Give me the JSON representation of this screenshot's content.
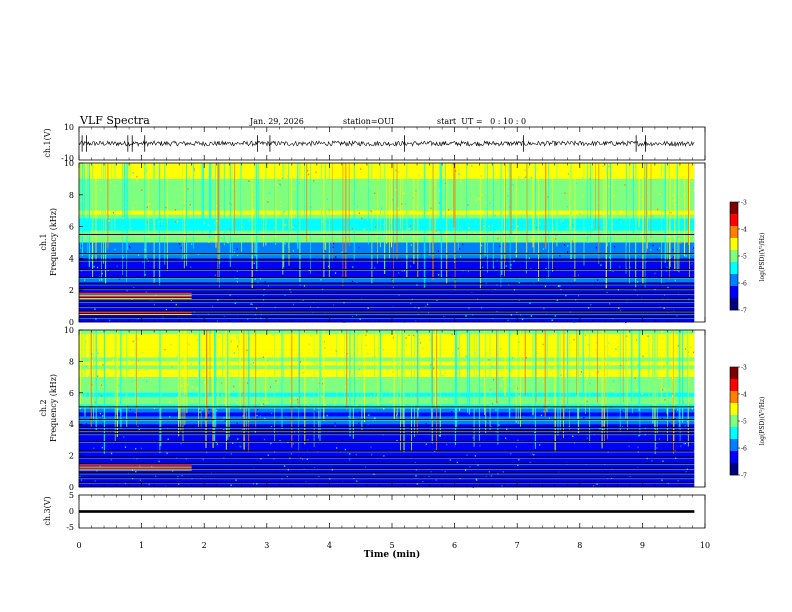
{
  "header": {
    "title": "VLF Spectra",
    "date": "Jan. 29, 2026",
    "station": "station=OUI",
    "start": "start  UT =   0 : 10 : 0"
  },
  "chart_data": [
    {
      "type": "line",
      "name": "waveform-ch1",
      "ylabel": "ch.1(V)",
      "ylim": [
        -10,
        10
      ],
      "yticks": [
        "10",
        "-10"
      ],
      "trace_level": 0,
      "trace_amplitude": 1.5,
      "spikes": [
        0.05,
        0.12,
        0.78,
        0.85,
        1.05,
        2.85,
        3.05,
        5.2,
        7.1,
        8.9,
        9.05
      ]
    },
    {
      "type": "heatmap",
      "name": "spectrogram-ch1",
      "ylabel_line1": "ch.1",
      "ylabel_line2": "Frequency (kHz)",
      "ylim": [
        0,
        10
      ],
      "yticks": [
        "0",
        "2",
        "4",
        "6",
        "8",
        "10"
      ],
      "colorbar_label": "log(PSD)(V²/Hz)",
      "colorbar_range": [
        -7,
        -3
      ],
      "colorbar_ticks": [
        "-3",
        "-4",
        "-5",
        "-6",
        "-7"
      ],
      "tones_khz": [
        0.3,
        0.55,
        0.7,
        1.0,
        1.3,
        1.5,
        1.8,
        2.1,
        2.4,
        2.8,
        3.3,
        3.9,
        4.3,
        5.5
      ],
      "red_tones_khz": [
        0.6,
        1.6,
        1.8
      ]
    },
    {
      "type": "heatmap",
      "name": "spectrogram-ch2",
      "ylabel_line1": "ch.2",
      "ylabel_line2": "Frequency (kHz)",
      "ylim": [
        0,
        10
      ],
      "yticks": [
        "0",
        "2",
        "4",
        "6",
        "8",
        "10"
      ],
      "colorbar_label": "log(PSD)(V²/Hz)",
      "colorbar_range": [
        -7,
        -3
      ],
      "colorbar_ticks": [
        "-3",
        "-4",
        "-5",
        "-6",
        "-7"
      ],
      "tones_khz": [
        0.3,
        0.6,
        0.9,
        1.2,
        1.5,
        1.9,
        2.3,
        2.9,
        3.4,
        3.6,
        3.8,
        4.3,
        5.1
      ],
      "red_tones_khz": [
        1.2,
        1.4
      ]
    },
    {
      "type": "line",
      "name": "waveform-ch3",
      "ylabel": "ch.3(V)",
      "ylim": [
        -5,
        5
      ],
      "yticks": [
        "5",
        "0",
        "-5"
      ],
      "trace_level": 0,
      "trace_amplitude": 0.4
    }
  ],
  "xaxis": {
    "xlabel": "Time (min)",
    "xlim": [
      0,
      10
    ],
    "xticks": [
      "0",
      "1",
      "2",
      "3",
      "4",
      "5",
      "6",
      "7",
      "8",
      "9",
      "10"
    ],
    "data_end": 9.83,
    "transition": 1.8
  },
  "colors": {
    "colormap": [
      "#00007f",
      "#0000ff",
      "#007fff",
      "#00ffff",
      "#7fff7f",
      "#ffff00",
      "#ff7f00",
      "#ff0000",
      "#7f0000"
    ]
  }
}
